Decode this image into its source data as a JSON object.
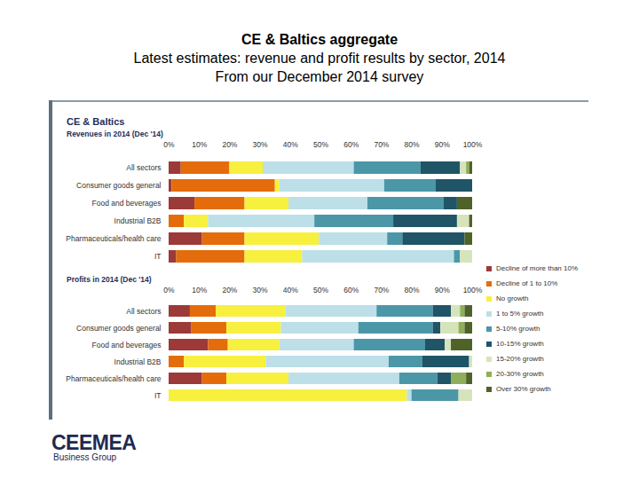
{
  "page": {
    "title": "CE & Baltics aggregate",
    "subtitle": "Latest estimates: revenue and profit results by sector, 2014",
    "caption": "From our December 2014 survey",
    "heading": "CE & Baltics"
  },
  "chart_data": [
    {
      "type": "bar",
      "title": "Revenues in 2014 (Dec '14)",
      "orientation": "horizontal",
      "stacked": true,
      "categories": [
        "All sectors",
        "Consumer goods general",
        "Food and beverages",
        "Industrial B2B",
        "Pharmaceuticals/health care",
        "IT"
      ],
      "xlim": [
        0,
        100
      ],
      "xticks": [
        {
          "value": 0,
          "label": "0%"
        },
        {
          "value": 10,
          "label": "10%"
        },
        {
          "value": 20,
          "label": "20%"
        },
        {
          "value": 30,
          "label": "30%"
        },
        {
          "value": 40,
          "label": "40%"
        },
        {
          "value": 50,
          "label": "50%"
        },
        {
          "value": 60,
          "label": "60%"
        },
        {
          "value": 70,
          "label": "70%"
        },
        {
          "value": 80,
          "label": "80%"
        },
        {
          "value": 90,
          "label": "90%"
        },
        {
          "value": 100,
          "label": "100%"
        }
      ],
      "series": [
        {
          "name": "Decline of more than 10%",
          "color": "#9b3a38",
          "values": [
            4,
            1,
            8.5,
            0,
            11,
            2.5
          ]
        },
        {
          "name": "Decline of 1 to 10%",
          "color": "#e46c0a",
          "values": [
            16,
            34,
            16.5,
            5,
            14,
            22.5
          ]
        },
        {
          "name": "No growth",
          "color": "#f7f03e",
          "values": [
            11,
            1.5,
            14.5,
            8,
            24.5,
            19
          ]
        },
        {
          "name": "1 to 5% growth",
          "color": "#bcdfe8",
          "values": [
            30,
            34.5,
            26,
            35,
            22.5,
            50
          ]
        },
        {
          "name": "5-10% growth",
          "color": "#4b97a8",
          "values": [
            22,
            17,
            25,
            26,
            5,
            2
          ]
        },
        {
          "name": "10-15% growth",
          "color": "#1f5566",
          "values": [
            13,
            12,
            4.5,
            21,
            20.5,
            0
          ]
        },
        {
          "name": "15-20% growth",
          "color": "#d6e4bc",
          "values": [
            2,
            0,
            0,
            4,
            0,
            4
          ]
        },
        {
          "name": "20-30% growth",
          "color": "#8fae5a",
          "values": [
            1,
            0,
            0,
            0,
            0,
            0
          ]
        },
        {
          "name": "Over 30% growth",
          "color": "#4f6228",
          "values": [
            1,
            0,
            5,
            1,
            2.5,
            0
          ]
        }
      ]
    },
    {
      "type": "bar",
      "title": "Profits in 2014 (Dec '14)",
      "orientation": "horizontal",
      "stacked": true,
      "legend": "right",
      "categories": [
        "All sectors",
        "Consumer goods general",
        "Food and beverages",
        "Industrial B2B",
        "Pharmaceuticals/health care",
        "IT"
      ],
      "xlim": [
        0,
        100
      ],
      "xticks": [
        {
          "value": 0,
          "label": "0%"
        },
        {
          "value": 10,
          "label": "10%"
        },
        {
          "value": 20,
          "label": "20%"
        },
        {
          "value": 30,
          "label": "30%"
        },
        {
          "value": 40,
          "label": "40%"
        },
        {
          "value": 50,
          "label": "50%"
        },
        {
          "value": 60,
          "label": "60%"
        },
        {
          "value": 70,
          "label": "70%"
        },
        {
          "value": 80,
          "label": "80%"
        },
        {
          "value": 90,
          "label": "90%"
        },
        {
          "value": 100,
          "label": "100%"
        }
      ],
      "series": [
        {
          "name": "Decline of more than 10%",
          "color": "#9b3a38",
          "values": [
            7,
            7.5,
            13,
            0,
            11,
            0
          ]
        },
        {
          "name": "Decline of 1 to 10%",
          "color": "#e46c0a",
          "values": [
            8.5,
            11.5,
            6.5,
            5,
            8,
            0
          ]
        },
        {
          "name": "No growth",
          "color": "#f7f03e",
          "values": [
            23,
            18,
            17,
            27,
            20.5,
            78.5
          ]
        },
        {
          "name": "1 to 5% growth",
          "color": "#bcdfe8",
          "values": [
            30,
            25.5,
            24.5,
            40.5,
            36.5,
            1.5
          ]
        },
        {
          "name": "5-10% growth",
          "color": "#4b97a8",
          "values": [
            18.5,
            24.5,
            23.5,
            11,
            12.5,
            15.5
          ]
        },
        {
          "name": "10-15% growth",
          "color": "#1f5566",
          "values": [
            6,
            2.5,
            6.5,
            15.5,
            4.5,
            0
          ]
        },
        {
          "name": "15-20% growth",
          "color": "#d6e4bc",
          "values": [
            3,
            6,
            2,
            1,
            0,
            4.5
          ]
        },
        {
          "name": "20-30% growth",
          "color": "#8fae5a",
          "values": [
            1.5,
            2,
            0,
            0,
            5,
            0
          ]
        },
        {
          "name": "Over 30% growth",
          "color": "#4f6228",
          "values": [
            2.5,
            2.5,
            7,
            0,
            2,
            0
          ]
        }
      ]
    }
  ],
  "footer": {
    "logo": "CEEMEA",
    "tagline": "Business Group"
  }
}
